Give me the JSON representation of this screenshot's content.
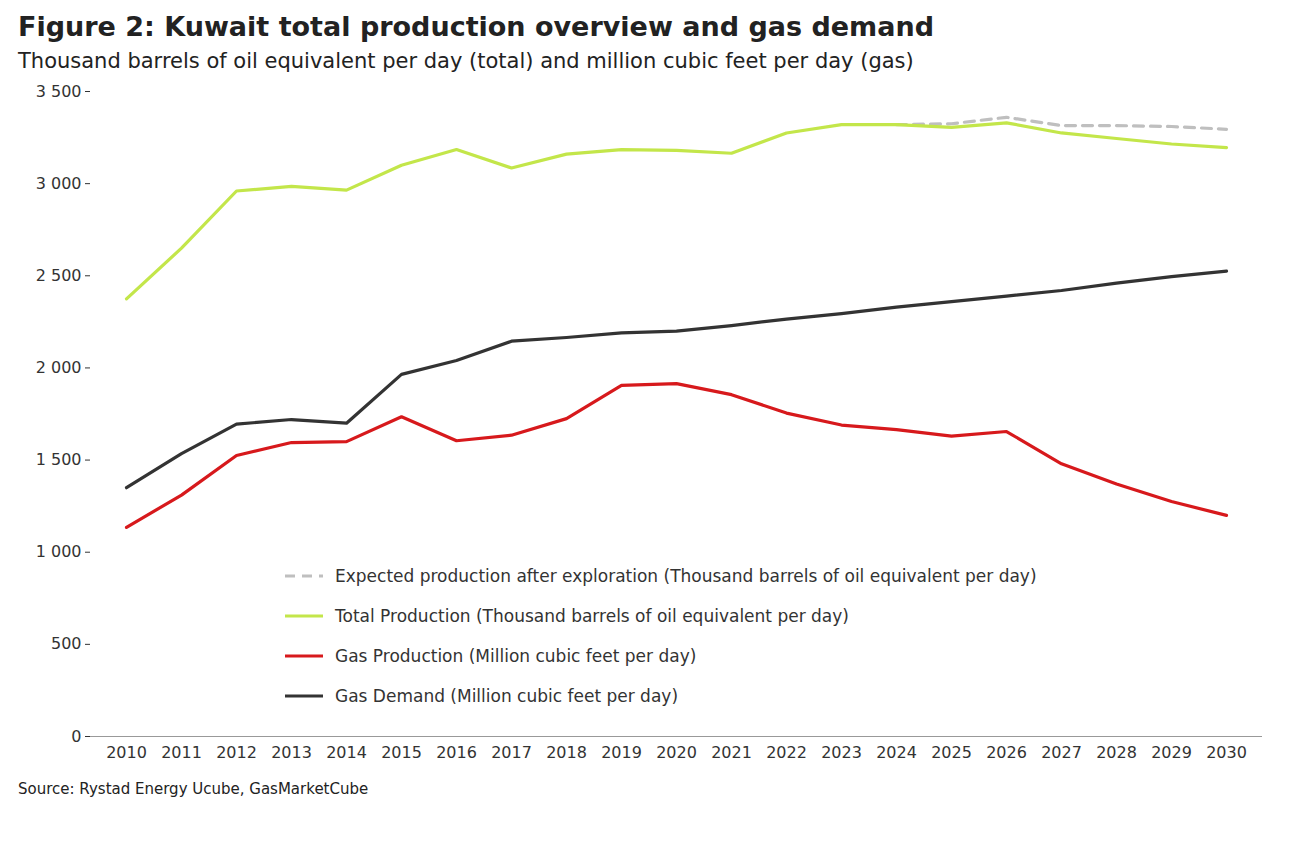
{
  "chart_data": {
    "type": "line",
    "title": "Figure 2: Kuwait total production overview and gas demand",
    "subtitle": "Thousand barrels of oil equivalent per day (total) and million cubic feet per day (gas)",
    "source": "Source: Rystad Energy Ucube, GasMarketCube",
    "x": [
      "2010",
      "2011",
      "2012",
      "2013",
      "2014",
      "2015",
      "2016",
      "2017",
      "2018",
      "2019",
      "2020",
      "2021",
      "2022",
      "2023",
      "2024",
      "2025",
      "2026",
      "2027",
      "2028",
      "2029",
      "2030"
    ],
    "series": [
      {
        "name": "Expected production after exploration (Thousand barrels of oil equivalent per day)",
        "color": "#bfbfbf",
        "line_style": "dashed",
        "values": [
          null,
          null,
          null,
          null,
          null,
          null,
          null,
          null,
          null,
          null,
          null,
          null,
          null,
          null,
          3320,
          3325,
          3360,
          3315,
          3315,
          3310,
          3295
        ]
      },
      {
        "name": "Total Production (Thousand barrels of oil equivalent per day)",
        "color": "#c3e64a",
        "line_style": "solid",
        "values": [
          2375,
          2650,
          2960,
          2985,
          2965,
          3100,
          3185,
          3085,
          3160,
          3185,
          3180,
          3165,
          3275,
          3320,
          3320,
          3305,
          3330,
          3275,
          3245,
          3215,
          3195
        ]
      },
      {
        "name": "Gas Production (Million cubic feet per day)",
        "color": "#d7191c",
        "line_style": "solid",
        "values": [
          1135,
          1310,
          1525,
          1595,
          1600,
          1735,
          1605,
          1635,
          1725,
          1905,
          1915,
          1855,
          1755,
          1690,
          1665,
          1630,
          1655,
          1480,
          1370,
          1275,
          1200
        ]
      },
      {
        "name": "Gas Demand (Million cubic feet per day)",
        "color": "#333333",
        "line_style": "solid",
        "values": [
          1350,
          1535,
          1695,
          1720,
          1700,
          1965,
          2040,
          2145,
          2165,
          2190,
          2200,
          2230,
          2265,
          2295,
          2330,
          2360,
          2390,
          2420,
          2460,
          2495,
          2525
        ]
      }
    ],
    "ylim": [
      0,
      3500
    ],
    "yticks": [
      0,
      500,
      {
        "value": 1000,
        "label": "1 000"
      },
      {
        "value": 1500,
        "label": "1 500"
      },
      {
        "value": 2000,
        "label": "2 000"
      },
      {
        "value": 2500,
        "label": "2 500"
      },
      {
        "value": 3000,
        "label": "3 000"
      },
      {
        "value": 3500,
        "label": "3 500"
      }
    ],
    "grid": false,
    "legend": "bottom"
  }
}
